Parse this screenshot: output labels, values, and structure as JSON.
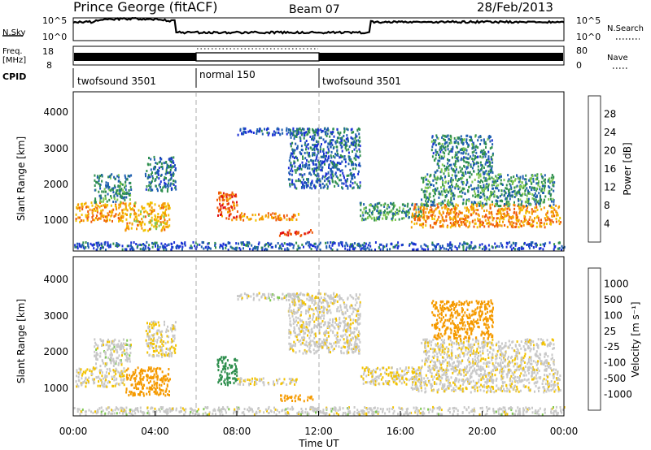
{
  "header": {
    "station": "Prince George (fitACF)",
    "beam": "Beam 07",
    "date": "28/Feb/2013"
  },
  "noise_panel": {
    "left_label": "N.Sky",
    "right_label": "N.Search",
    "left_ticks": [
      "10^5",
      "10^0"
    ],
    "right_ticks": [
      "10^5",
      "10^0"
    ]
  },
  "freq_panel": {
    "left_label_1": "Freq.",
    "left_label_2": "[MHz]",
    "left_ticks": [
      "18",
      "8"
    ],
    "right_label": "Nave",
    "right_ticks": [
      "80",
      "0"
    ]
  },
  "cpid": {
    "label": "CPID",
    "segments": [
      {
        "name": "twofsound 3501",
        "start_hour": 0,
        "end_hour": 6
      },
      {
        "name": "normal 150",
        "start_hour": 6,
        "end_hour": 12
      },
      {
        "name": "twofsound 3501",
        "start_hour": 12,
        "end_hour": 24
      }
    ]
  },
  "xaxis": {
    "label": "Time UT",
    "ticks": [
      "00:00",
      "04:00",
      "08:00",
      "12:00",
      "16:00",
      "20:00",
      "00:00"
    ]
  },
  "power_panel": {
    "ylabel": "Slant Range [km]",
    "yticks": [
      "1000",
      "2000",
      "3000",
      "4000"
    ],
    "colorbar_label": "Power [dB]",
    "colorbar_ticks": [
      "4",
      "8",
      "12",
      "16",
      "20",
      "24",
      "28"
    ]
  },
  "velocity_panel": {
    "ylabel": "Slant Range [km]",
    "yticks": [
      "1000",
      "2000",
      "3000",
      "4000"
    ],
    "colorbar_label": "Velocity [m s⁻¹]",
    "colorbar_ticks": [
      "1000",
      "500",
      "100",
      "25",
      "-25",
      "-100",
      "-500",
      "-1000"
    ]
  },
  "colors": {
    "power_scale": [
      "#1a2fd6",
      "#1f5fb0",
      "#2f8f4e",
      "#7ec850",
      "#f2c200",
      "#f59a00",
      "#ef5a0a",
      "#e01010"
    ],
    "velocity_scale": [
      "#1a2fd6",
      "#1f5fb0",
      "#2f8f4e",
      "#7ec850",
      "#c8c8c8",
      "#f2c200",
      "#f59a00",
      "#ef5a0a",
      "#e01010"
    ]
  },
  "chart_data": {
    "type": "heatmap",
    "x_range_hours": [
      0,
      24
    ],
    "y_range_km": [
      0,
      4500
    ],
    "power_scale_db": [
      0,
      32
    ],
    "velocity_scale_ms": [
      -1000,
      1000
    ],
    "backscatter_regions": [
      {
        "t0": 0.1,
        "t1": 2.5,
        "r0": 850,
        "r1": 1400,
        "power_db": 22,
        "velocity": -20
      },
      {
        "t0": 1.0,
        "t1": 2.8,
        "r0": 1400,
        "r1": 2200,
        "power_db": 9,
        "velocity": 0
      },
      {
        "t0": 2.5,
        "t1": 4.7,
        "r0": 600,
        "r1": 1400,
        "power_db": 20,
        "velocity": -200
      },
      {
        "t0": 3.5,
        "t1": 5.0,
        "r0": 1700,
        "r1": 2700,
        "power_db": 7,
        "velocity": -20
      },
      {
        "t0": 7.0,
        "t1": 8.0,
        "r0": 900,
        "r1": 1700,
        "power_db": 26,
        "velocity": 150
      },
      {
        "t0": 8.0,
        "t1": 11.0,
        "r0": 900,
        "r1": 1100,
        "power_db": 22,
        "velocity": -20
      },
      {
        "t0": 10.0,
        "t1": 11.7,
        "r0": 450,
        "r1": 620,
        "power_db": 29,
        "velocity": -300
      },
      {
        "t0": 8.0,
        "t1": 11.5,
        "r0": 3300,
        "r1": 3500,
        "power_db": 4,
        "velocity": 0
      },
      {
        "t0": 10.5,
        "t1": 14.0,
        "r0": 1800,
        "r1": 3500,
        "power_db": 6,
        "velocity": -10
      },
      {
        "t0": 14.0,
        "t1": 17.0,
        "r0": 900,
        "r1": 1400,
        "power_db": 10,
        "velocity": -20
      },
      {
        "t0": 16.5,
        "t1": 23.8,
        "r0": 700,
        "r1": 1350,
        "power_db": 23,
        "velocity": -10
      },
      {
        "t0": 17.0,
        "t1": 23.5,
        "r0": 1300,
        "r1": 2200,
        "power_db": 10,
        "velocity": -10
      },
      {
        "t0": 17.5,
        "t1": 20.5,
        "r0": 2200,
        "r1": 3300,
        "power_db": 8,
        "velocity": -300
      },
      {
        "t0": 0.0,
        "t1": 24.0,
        "r0": 60,
        "r1": 280,
        "power_db": 5,
        "velocity": 0
      }
    ]
  }
}
